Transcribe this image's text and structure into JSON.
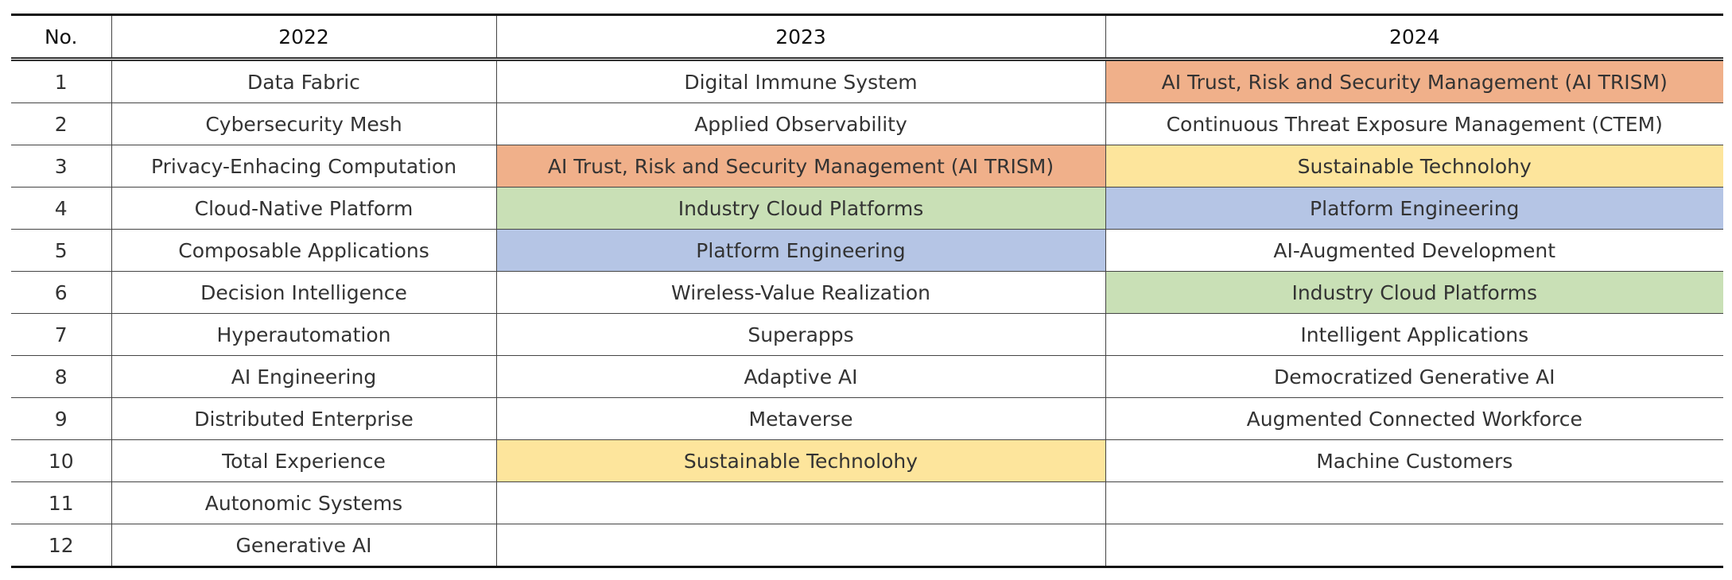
{
  "table": {
    "header": [
      "No.",
      "2022",
      "2023",
      "2024"
    ],
    "rows": [
      [
        "1",
        "Data Fabric",
        "Digital Immune System",
        "AI Trust, Risk and Security Management (AI TRISM)"
      ],
      [
        "2",
        "Cybersecurity Mesh",
        "Applied Observability",
        "Continuous Threat Exposure Management (CTEM)"
      ],
      [
        "3",
        "Privacy-Enhacing Computation",
        "AI Trust, Risk and Security Management (AI TRISM)",
        "Sustainable Technolohy"
      ],
      [
        "4",
        "Cloud-Native Platform",
        "Industry Cloud Platforms",
        "Platform Engineering"
      ],
      [
        "5",
        "Composable Applications",
        "Platform Engineering",
        "AI-Augmented Development"
      ],
      [
        "6",
        "Decision Intelligence",
        "Wireless-Value Realization",
        "Industry Cloud Platforms"
      ],
      [
        "7",
        "Hyperautomation",
        "Superapps",
        "Intelligent Applications"
      ],
      [
        "8",
        "AI Engineering",
        "Adaptive AI",
        "Democratized Generative AI"
      ],
      [
        "9",
        "Distributed Enterprise",
        "Metaverse",
        "Augmented Connected Workforce"
      ],
      [
        "10",
        "Total Experience",
        "Sustainable Technolohy",
        "Machine Customers"
      ],
      [
        "11",
        "Autonomic Systems"
      ],
      [
        "12",
        "Generative AI"
      ]
    ]
  }
}
